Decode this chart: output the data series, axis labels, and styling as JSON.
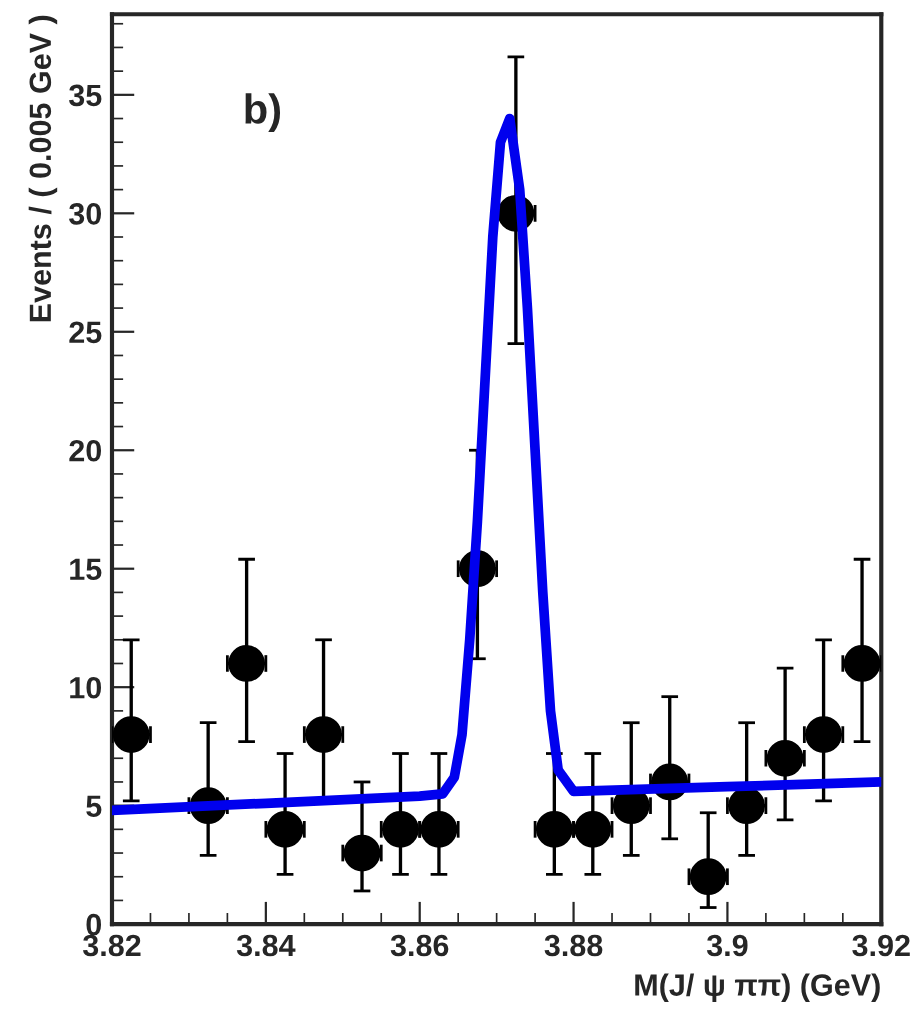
{
  "chart_data": {
    "type": "scatter",
    "xlabel": "M(J/ ψ ππ) (GeV)",
    "ylabel": "Events / ( 0.005 GeV )",
    "annotations": [
      "b)"
    ],
    "xlim": [
      3.82,
      3.92
    ],
    "xticks": [
      3.82,
      3.84,
      3.86,
      3.88,
      3.9,
      3.92
    ],
    "ylim": [
      0,
      38.4
    ],
    "yticks": [
      0,
      5,
      10,
      15,
      20,
      25,
      30,
      35
    ],
    "grid": false,
    "legend": false,
    "series": [
      {
        "color": "#000000",
        "marker": "circle",
        "x": [
          3.8225,
          3.8325,
          3.8375,
          3.8425,
          3.8475,
          3.8525,
          3.8575,
          3.8625,
          3.8675,
          3.8725,
          3.8775,
          3.8825,
          3.8875,
          3.8925,
          3.8975,
          3.9025,
          3.9075,
          3.9125,
          3.9175
        ],
        "values": [
          8,
          5,
          11,
          4,
          8,
          3,
          4,
          4,
          15,
          30,
          4,
          4,
          5,
          6,
          2,
          5,
          7,
          8,
          11
        ],
        "errors": [
          [
            5.2,
            12
          ],
          [
            2.9,
            8.5
          ],
          [
            7.7,
            15.4
          ],
          [
            2.1,
            7.2
          ],
          [
            5.2,
            12
          ],
          [
            1.4,
            6
          ],
          [
            2.1,
            7.2
          ],
          [
            2.1,
            7.2
          ],
          [
            11.2,
            20
          ],
          [
            24.5,
            36.6
          ],
          [
            2.1,
            7.2
          ],
          [
            2.1,
            7.2
          ],
          [
            2.9,
            8.5
          ],
          [
            3.6,
            9.6
          ],
          [
            0.7,
            4.7
          ],
          [
            2.9,
            8.5
          ],
          [
            4.4,
            10.8
          ],
          [
            5.2,
            12
          ],
          [
            7.7,
            15.4
          ]
        ],
        "xerrors": [
          0.0025,
          0.0025,
          0.0025,
          0.0025,
          0.0025,
          0.0025,
          0.0025,
          0.0025,
          0.0025,
          0.0025,
          0.0025,
          0.0025,
          0.0025,
          0.0025,
          0.0025,
          0.0025,
          0.0025,
          0.0025,
          0.0025
        ]
      },
      {
        "type": "line",
        "color": "#0000ee",
        "line_style": "solid",
        "x": [
          3.82,
          3.84,
          3.86,
          3.863,
          3.8645,
          3.8655,
          3.8665,
          3.8675,
          3.8685,
          3.8695,
          3.8705,
          3.8717,
          3.873,
          3.874,
          3.875,
          3.876,
          3.877,
          3.878,
          3.88,
          3.9,
          3.92
        ],
        "values": [
          4.8,
          5.1,
          5.4,
          5.5,
          6.2,
          8,
          12,
          17,
          23,
          29,
          33,
          34,
          31,
          26,
          20,
          14,
          9,
          6.5,
          5.6,
          5.8,
          6.0
        ]
      }
    ]
  }
}
